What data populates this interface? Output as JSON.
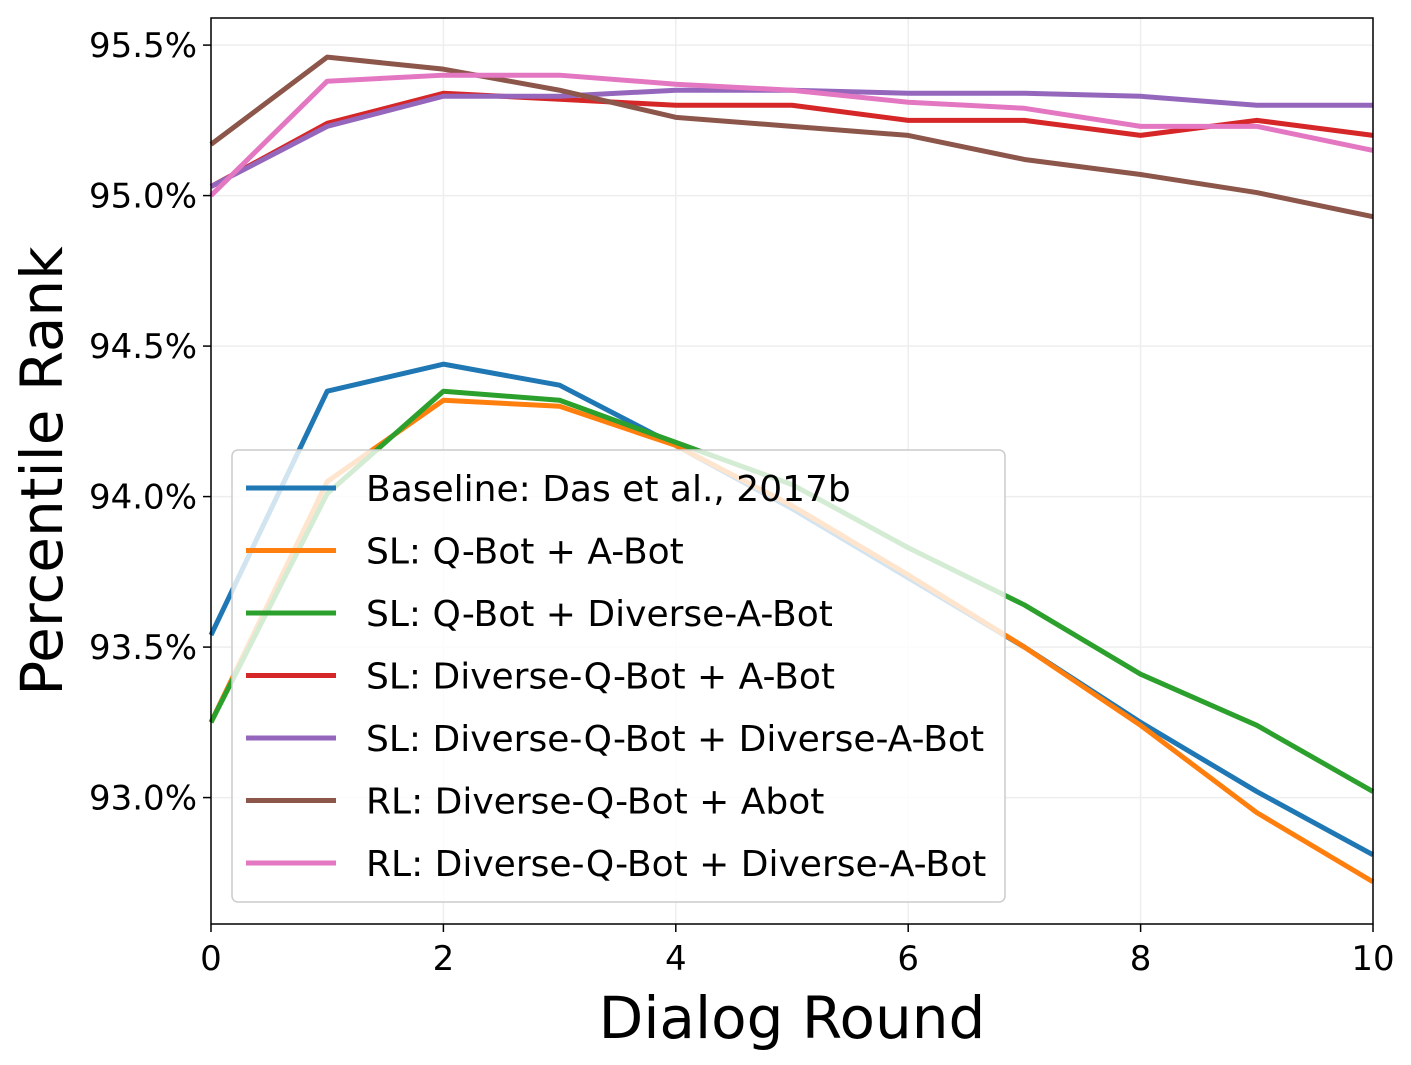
{
  "chart_data": {
    "type": "line",
    "title": "",
    "xlabel": "Dialog Round",
    "ylabel": "Percentile Rank",
    "xlim": [
      0,
      10
    ],
    "ylim": [
      92.58,
      95.59
    ],
    "x": [
      0,
      1,
      2,
      3,
      4,
      5,
      6,
      7,
      8,
      9,
      10
    ],
    "x_ticks": [
      0,
      2,
      4,
      6,
      8,
      10
    ],
    "x_tick_labels": [
      "0",
      "2",
      "4",
      "6",
      "8",
      "10"
    ],
    "y_ticks": [
      93.0,
      93.5,
      94.0,
      94.5,
      95.0,
      95.5
    ],
    "y_tick_labels": [
      "93.0%",
      "93.5%",
      "94.0%",
      "94.5%",
      "95.0%",
      "95.5%"
    ],
    "grid": true,
    "legend_position": "lower-left",
    "series": [
      {
        "name": "Baseline: Das et al., 2017b",
        "color": "#1f77b4",
        "values": [
          93.54,
          94.35,
          94.44,
          94.37,
          94.17,
          93.96,
          93.73,
          93.5,
          93.25,
          93.02,
          92.81
        ]
      },
      {
        "name": "SL: Q-Bot + A-Bot",
        "color": "#ff7f0e",
        "values": [
          93.25,
          94.05,
          94.32,
          94.3,
          94.17,
          93.97,
          93.74,
          93.5,
          93.24,
          92.95,
          92.72
        ]
      },
      {
        "name": "SL: Q-Bot + Diverse-A-Bot",
        "color": "#2ca02c",
        "values": [
          93.25,
          94.01,
          94.35,
          94.32,
          94.18,
          94.04,
          93.83,
          93.64,
          93.41,
          93.24,
          93.02
        ]
      },
      {
        "name": "SL: Diverse-Q-Bot + A-Bot",
        "color": "#d62728",
        "values": [
          95.03,
          95.24,
          95.34,
          95.32,
          95.3,
          95.3,
          95.25,
          95.25,
          95.2,
          95.25,
          95.2
        ]
      },
      {
        "name": "SL: Diverse-Q-Bot + Diverse-A-Bot",
        "color": "#9467bd",
        "values": [
          95.03,
          95.23,
          95.33,
          95.33,
          95.35,
          95.35,
          95.34,
          95.34,
          95.33,
          95.3,
          95.3
        ]
      },
      {
        "name": "RL: Diverse-Q-Bot + Abot",
        "color": "#8c564b",
        "values": [
          95.17,
          95.46,
          95.42,
          95.35,
          95.26,
          95.23,
          95.2,
          95.12,
          95.07,
          95.01,
          94.93
        ]
      },
      {
        "name": "RL: Diverse-Q-Bot + Diverse-A-Bot",
        "color": "#e377c2",
        "values": [
          95.0,
          95.38,
          95.4,
          95.4,
          95.37,
          95.35,
          95.31,
          95.29,
          95.23,
          95.23,
          95.15
        ]
      }
    ]
  }
}
